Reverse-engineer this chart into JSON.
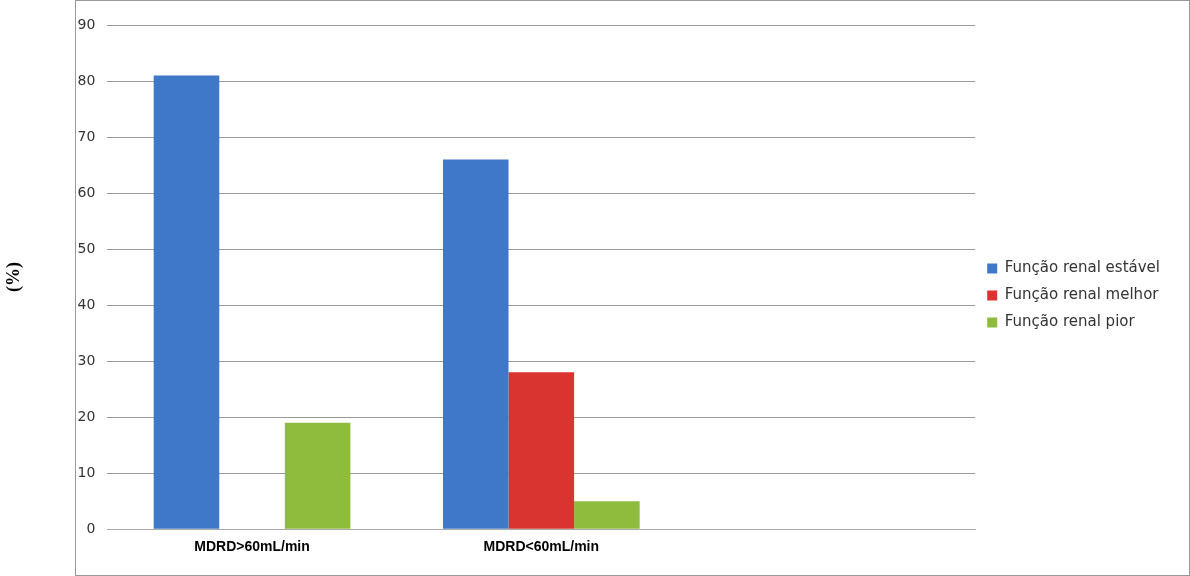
{
  "chart_data": {
    "type": "bar",
    "ylabel": "(%)",
    "categories": [
      "MDRD>60mL/min",
      "MDRD<60mL/min",
      null
    ],
    "series": [
      {
        "name": "Função renal estável",
        "color": "#3f78c9",
        "values": [
          81,
          66,
          null
        ]
      },
      {
        "name": "Função renal melhor",
        "color": "#d9342f",
        "values": [
          0,
          28,
          null
        ]
      },
      {
        "name": "Função renal pior",
        "color": "#8fbc3c",
        "values": [
          19,
          5,
          null
        ]
      }
    ],
    "ylim": [
      0,
      90
    ],
    "yticks": [
      0,
      10,
      20,
      30,
      40,
      50,
      60,
      70,
      80,
      90
    ],
    "grid": "y",
    "legend": "right"
  }
}
